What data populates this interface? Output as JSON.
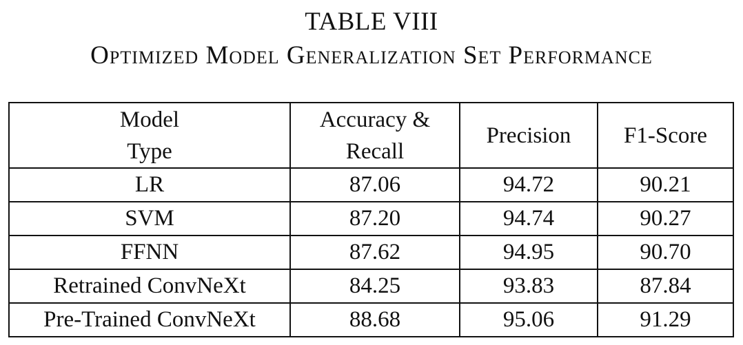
{
  "caption": {
    "number": "TABLE VIII",
    "title": "Optimized Model Generalization Set Performance"
  },
  "table": {
    "headers": [
      [
        "Model",
        "Type"
      ],
      [
        "Accuracy &",
        "Recall"
      ],
      [
        "Precision"
      ],
      [
        "F1-Score"
      ]
    ],
    "rows": [
      {
        "model": "LR",
        "accuracy_recall": "87.06",
        "precision": "94.72",
        "f1": "90.21"
      },
      {
        "model": "SVM",
        "accuracy_recall": "87.20",
        "precision": "94.74",
        "f1": "90.27"
      },
      {
        "model": "FFNN",
        "accuracy_recall": "87.62",
        "precision": "94.95",
        "f1": "90.70"
      },
      {
        "model": "Retrained ConvNeXt",
        "accuracy_recall": "84.25",
        "precision": "93.83",
        "f1": "87.84"
      },
      {
        "model": "Pre-Trained ConvNeXt",
        "accuracy_recall": "88.68",
        "precision": "95.06",
        "f1": "91.29"
      }
    ]
  }
}
